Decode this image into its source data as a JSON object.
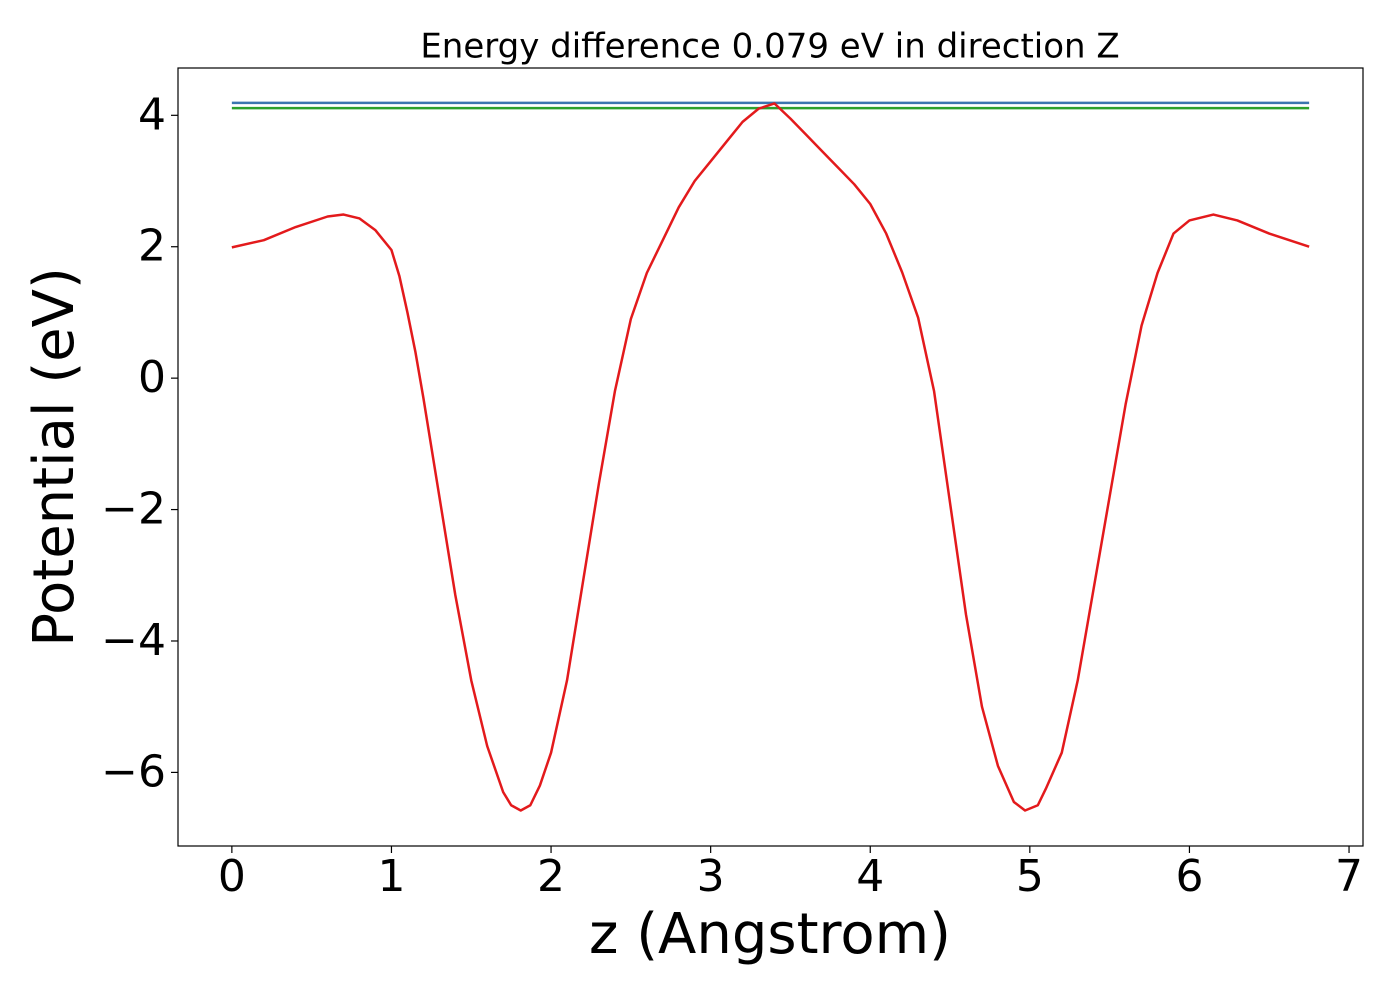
{
  "chart_data": {
    "type": "line",
    "title": "Energy difference 0.079 eV in direction Z",
    "x_label": "z (Angstrom)",
    "y_label": "Potential (eV)",
    "xlim": [
      -0.3375,
      7.0875
    ],
    "ylim": [
      -7.12,
      4.72
    ],
    "xticks": [
      0,
      1,
      2,
      3,
      4,
      5,
      6,
      7
    ],
    "yticks": [
      {
        "value": -6,
        "label": "−6"
      },
      {
        "value": -4,
        "label": "−4"
      },
      {
        "value": -2,
        "label": "−2"
      },
      0,
      2,
      4
    ],
    "grid": false,
    "series": [
      {
        "color": "#3b75af",
        "x": [
          0,
          6.75
        ],
        "values": [
          4.19,
          4.19
        ]
      },
      {
        "color": "#2ca02c",
        "x": [
          0,
          6.75
        ],
        "values": [
          4.11,
          4.11
        ]
      },
      {
        "color": "#e31a1c",
        "x": [
          0,
          0.2,
          0.4,
          0.6,
          0.7,
          0.8,
          0.9,
          1.0,
          1.05,
          1.1,
          1.15,
          1.2,
          1.3,
          1.4,
          1.5,
          1.6,
          1.7,
          1.75,
          1.81,
          1.87,
          1.93,
          2.0,
          2.1,
          2.2,
          2.3,
          2.4,
          2.5,
          2.6,
          2.7,
          2.8,
          2.9,
          3.0,
          3.1,
          3.2,
          3.3,
          3.4,
          3.5,
          3.6,
          3.7,
          3.8,
          3.9,
          4.0,
          4.1,
          4.2,
          4.3,
          4.4,
          4.5,
          4.6,
          4.7,
          4.8,
          4.9,
          4.97,
          5.05,
          5.1,
          5.2,
          5.3,
          5.4,
          5.5,
          5.6,
          5.7,
          5.8,
          5.9,
          6.0,
          6.15,
          6.3,
          6.5,
          6.75
        ],
        "values": [
          1.99,
          2.1,
          2.3,
          2.46,
          2.49,
          2.43,
          2.25,
          1.95,
          1.55,
          1.0,
          0.4,
          -0.3,
          -1.8,
          -3.3,
          -4.6,
          -5.6,
          -6.3,
          -6.5,
          -6.58,
          -6.5,
          -6.2,
          -5.7,
          -4.6,
          -3.1,
          -1.6,
          -0.2,
          0.9,
          1.6,
          2.1,
          2.6,
          3.0,
          3.3,
          3.6,
          3.9,
          4.1,
          4.18,
          3.95,
          3.7,
          3.45,
          3.2,
          2.95,
          2.65,
          2.2,
          1.61,
          0.92,
          -0.2,
          -1.9,
          -3.6,
          -5.0,
          -5.9,
          -6.45,
          -6.58,
          -6.5,
          -6.25,
          -5.7,
          -4.6,
          -3.2,
          -1.8,
          -0.4,
          0.8,
          1.6,
          2.2,
          2.4,
          2.49,
          2.4,
          2.2,
          2.0
        ]
      }
    ]
  }
}
